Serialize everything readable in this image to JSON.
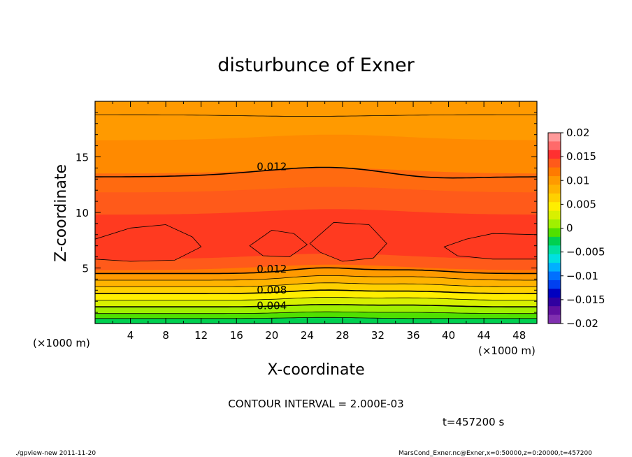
{
  "chart_data": {
    "type": "contour",
    "title": "disturbunce of Exner",
    "xlabel": "X-coordinate",
    "ylabel": "Z-coordinate",
    "x_unit_left": "(×1000 m)",
    "x_unit_right": "(×1000 m)",
    "xlim": [
      0,
      50
    ],
    "ylim": [
      0,
      20
    ],
    "x_ticks": [
      "4",
      "8",
      "12",
      "16",
      "20",
      "24",
      "28",
      "32",
      "36",
      "40",
      "44",
      "48"
    ],
    "y_ticks": [
      "5",
      "10",
      "15"
    ],
    "contour_labels": [
      {
        "text": "0.012",
        "x": 18.3,
        "z": 13.8
      },
      {
        "text": "0.012",
        "x": 18.3,
        "z": 4.6
      },
      {
        "text": "0.008",
        "x": 18.3,
        "z": 2.7
      },
      {
        "text": "0.004",
        "x": 18.3,
        "z": 1.3
      }
    ],
    "colorbar": {
      "tick_labels": [
        "0.02",
        "0.015",
        "0.01",
        "0.005",
        "0",
        "−0.005",
        "−0.01",
        "−0.015",
        "−0.02"
      ],
      "colors": [
        "#ff9a9a",
        "#ff6a6a",
        "#ff3030",
        "#ff5a1a",
        "#ff7a00",
        "#ff9a00",
        "#ffb300",
        "#ffd000",
        "#ffee00",
        "#d8f000",
        "#a0f000",
        "#50e000",
        "#00d050",
        "#00e0a0",
        "#00e0e0",
        "#00b0ff",
        "#0070ff",
        "#0040f0",
        "#0000c0",
        "#3000a0",
        "#6010a0",
        "#8030b0"
      ]
    },
    "field_band_colors": [
      "#ff9a00",
      "#ff8a00",
      "#ff6a10",
      "#ff5a1a",
      "#ff3a20",
      "#ff5a1a",
      "#ff7a00",
      "#ff9a00",
      "#ffb300",
      "#ffd000",
      "#ffee00",
      "#d8f000",
      "#a0f000",
      "#50e000",
      "#00d050"
    ]
  },
  "annotations": {
    "contour_interval": "CONTOUR INTERVAL = 2.000E-03",
    "time": "t=457200 s",
    "footer_left": "./gpview-new   2011-11-20",
    "footer_right": "MarsCond_Exner.nc@Exner,x=0:50000,z=0:20000,t=457200"
  }
}
